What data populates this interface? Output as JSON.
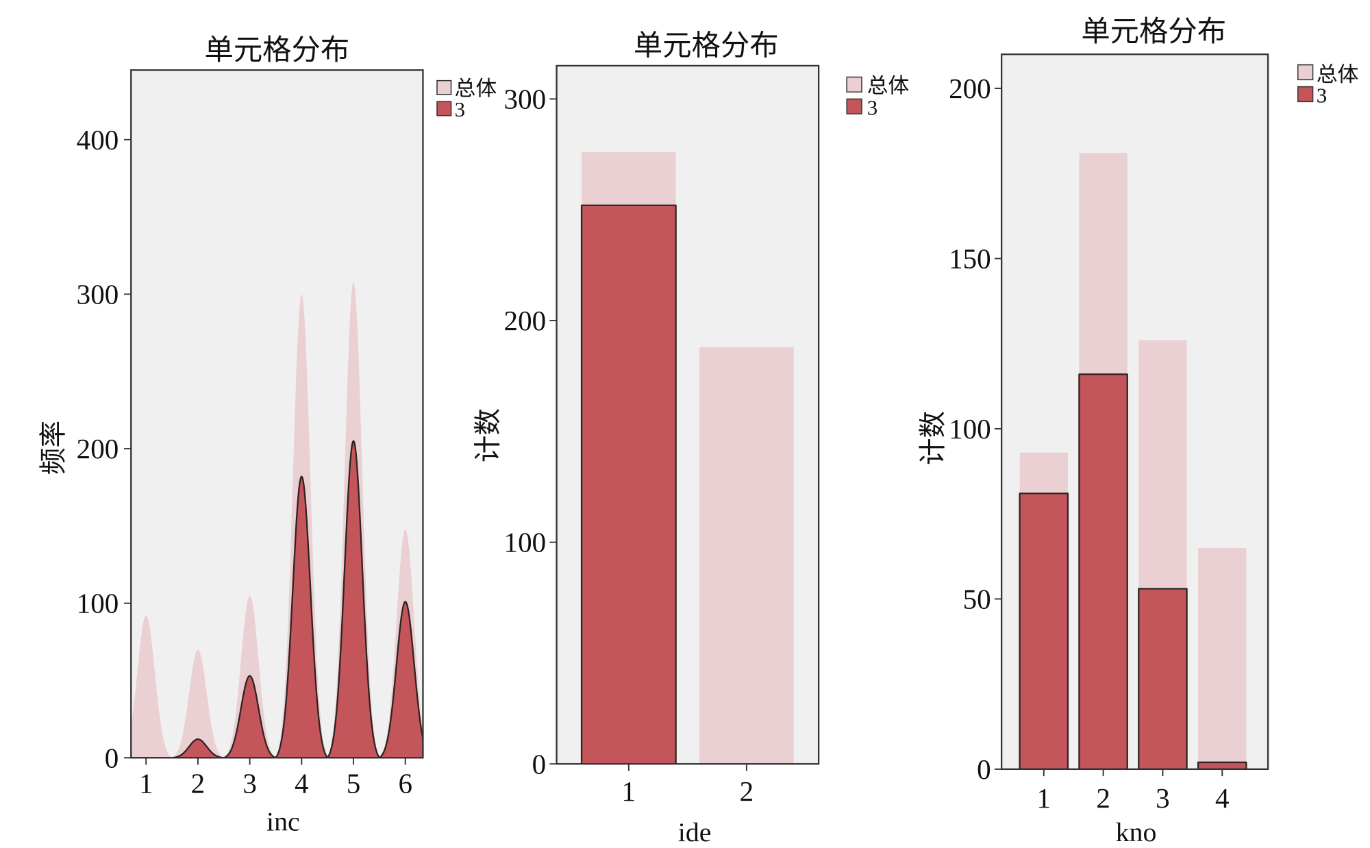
{
  "colors": {
    "plot_background": "#f0f0f0",
    "outline": "#2e2424"
  },
  "chart_data": [
    {
      "type": "area",
      "title": "单元格分布",
      "xlabel": "inc",
      "ylabel": "频率",
      "categories": [
        "1",
        "2",
        "3",
        "4",
        "5",
        "6"
      ],
      "yticks": [
        0,
        100,
        200,
        300,
        400
      ],
      "ylim": [
        0,
        445
      ],
      "grid": false,
      "legend_position": "right",
      "series": [
        {
          "name": "总体",
          "values": [
            92,
            70,
            105,
            300,
            308,
            148
          ],
          "color": "#ebd0d3"
        },
        {
          "name": "3",
          "values": [
            0,
            12,
            53,
            182,
            205,
            101
          ],
          "color": "#c4565b"
        }
      ]
    },
    {
      "type": "bar",
      "bar_mode": "overlay",
      "title": "单元格分布",
      "xlabel": "ide",
      "ylabel": "计数",
      "categories": [
        "1",
        "2"
      ],
      "yticks": [
        0,
        100,
        200,
        300
      ],
      "ylim": [
        0,
        315
      ],
      "grid": false,
      "legend_position": "right",
      "series": [
        {
          "name": "总体",
          "values": [
            276,
            188
          ],
          "color": "#ebd0d3"
        },
        {
          "name": "3",
          "values": [
            252,
            0
          ],
          "color": "#c4565b"
        }
      ]
    },
    {
      "type": "bar",
      "bar_mode": "overlay",
      "title": "单元格分布",
      "xlabel": "kno",
      "ylabel": "计数",
      "categories": [
        "1",
        "2",
        "3",
        "4"
      ],
      "yticks": [
        0,
        50,
        100,
        150,
        200
      ],
      "ylim": [
        0,
        210
      ],
      "grid": false,
      "legend_position": "right",
      "series": [
        {
          "name": "总体",
          "values": [
            93,
            181,
            126,
            65
          ],
          "color": "#ebd0d3"
        },
        {
          "name": "3",
          "values": [
            81,
            116,
            53,
            2
          ],
          "color": "#c4565b"
        }
      ]
    }
  ]
}
